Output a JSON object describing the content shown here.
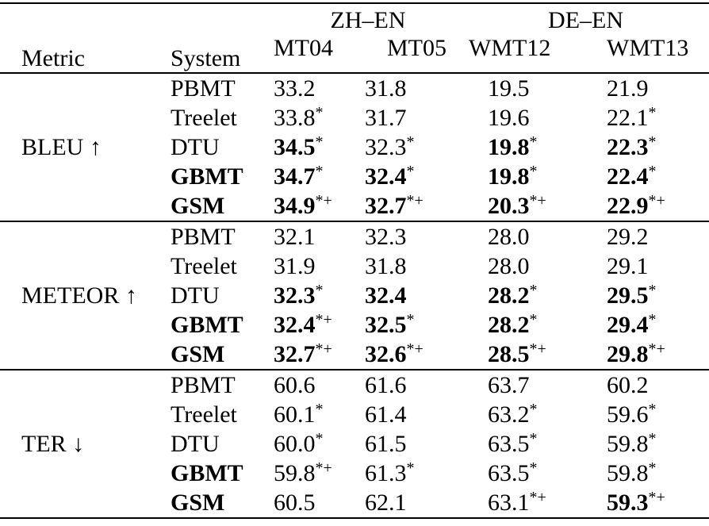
{
  "page": {
    "background": "#ffffff",
    "text_color": "#000000",
    "rule_color": "#000000"
  },
  "table": {
    "header": {
      "metric": "Metric",
      "system": "System",
      "groups": [
        {
          "label": "ZH–EN",
          "cols": [
            "MT04",
            "MT05"
          ]
        },
        {
          "label": "DE–EN",
          "cols": [
            "WMT12",
            "WMT13"
          ]
        }
      ]
    },
    "sections": [
      {
        "id": "bleu",
        "metric": "BLEU ↑",
        "rows": [
          {
            "system": "PBMT",
            "bold": false,
            "values": [
              {
                "v": "33.2",
                "sup": "",
                "bold": false
              },
              {
                "v": "31.8",
                "sup": "",
                "bold": false
              },
              {
                "v": "19.5",
                "sup": "",
                "bold": false
              },
              {
                "v": "21.9",
                "sup": "",
                "bold": false
              }
            ]
          },
          {
            "system": "Treelet",
            "bold": false,
            "values": [
              {
                "v": "33.8",
                "sup": "*",
                "bold": false
              },
              {
                "v": "31.7",
                "sup": "",
                "bold": false
              },
              {
                "v": "19.6",
                "sup": "",
                "bold": false
              },
              {
                "v": "22.1",
                "sup": "*",
                "bold": false
              }
            ]
          },
          {
            "system": "DTU",
            "bold": false,
            "values": [
              {
                "v": "34.5",
                "sup": "*",
                "bold": true
              },
              {
                "v": "32.3",
                "sup": "*",
                "bold": false
              },
              {
                "v": "19.8",
                "sup": "*",
                "bold": true
              },
              {
                "v": "22.3",
                "sup": "*",
                "bold": true
              }
            ]
          },
          {
            "system": "GBMT",
            "bold": true,
            "values": [
              {
                "v": "34.7",
                "sup": "*",
                "bold": true
              },
              {
                "v": "32.4",
                "sup": "*",
                "bold": true
              },
              {
                "v": "19.8",
                "sup": "*",
                "bold": true
              },
              {
                "v": "22.4",
                "sup": "*",
                "bold": true
              }
            ]
          },
          {
            "system": "GSM",
            "bold": true,
            "values": [
              {
                "v": "34.9",
                "sup": "*+",
                "bold": true
              },
              {
                "v": "32.7",
                "sup": "*+",
                "bold": true
              },
              {
                "v": "20.3",
                "sup": "*+",
                "bold": true
              },
              {
                "v": "22.9",
                "sup": "*+",
                "bold": true
              }
            ]
          }
        ]
      },
      {
        "id": "meteor",
        "metric": "METEOR ↑",
        "rows": [
          {
            "system": "PBMT",
            "bold": false,
            "values": [
              {
                "v": "32.1",
                "sup": "",
                "bold": false
              },
              {
                "v": "32.3",
                "sup": "",
                "bold": false
              },
              {
                "v": "28.0",
                "sup": "",
                "bold": false
              },
              {
                "v": "29.2",
                "sup": "",
                "bold": false
              }
            ]
          },
          {
            "system": "Treelet",
            "bold": false,
            "values": [
              {
                "v": "31.9",
                "sup": "",
                "bold": false
              },
              {
                "v": "31.8",
                "sup": "",
                "bold": false
              },
              {
                "v": "28.0",
                "sup": "",
                "bold": false
              },
              {
                "v": "29.1",
                "sup": "",
                "bold": false
              }
            ]
          },
          {
            "system": "DTU",
            "bold": false,
            "values": [
              {
                "v": "32.3",
                "sup": "*",
                "bold": true
              },
              {
                "v": "32.4",
                "sup": "",
                "bold": true
              },
              {
                "v": "28.2",
                "sup": "*",
                "bold": true
              },
              {
                "v": "29.5",
                "sup": "*",
                "bold": true
              }
            ]
          },
          {
            "system": "GBMT",
            "bold": true,
            "values": [
              {
                "v": "32.4",
                "sup": "*+",
                "bold": true
              },
              {
                "v": "32.5",
                "sup": "*",
                "bold": true
              },
              {
                "v": "28.2",
                "sup": "*",
                "bold": true
              },
              {
                "v": "29.4",
                "sup": "*",
                "bold": true
              }
            ]
          },
          {
            "system": "GSM",
            "bold": true,
            "values": [
              {
                "v": "32.7",
                "sup": "*+",
                "bold": true
              },
              {
                "v": "32.6",
                "sup": "*+",
                "bold": true
              },
              {
                "v": "28.5",
                "sup": "*+",
                "bold": true
              },
              {
                "v": "29.8",
                "sup": "*+",
                "bold": true
              }
            ]
          }
        ]
      },
      {
        "id": "ter",
        "metric": "TER ↓",
        "rows": [
          {
            "system": "PBMT",
            "bold": false,
            "values": [
              {
                "v": "60.6",
                "sup": "",
                "bold": false
              },
              {
                "v": "61.6",
                "sup": "",
                "bold": false
              },
              {
                "v": "63.7",
                "sup": "",
                "bold": false
              },
              {
                "v": "60.2",
                "sup": "",
                "bold": false
              }
            ]
          },
          {
            "system": "Treelet",
            "bold": false,
            "values": [
              {
                "v": "60.1",
                "sup": "*",
                "bold": false
              },
              {
                "v": "61.4",
                "sup": "",
                "bold": false
              },
              {
                "v": "63.2",
                "sup": "*",
                "bold": false
              },
              {
                "v": "59.6",
                "sup": "*",
                "bold": false
              }
            ]
          },
          {
            "system": "DTU",
            "bold": false,
            "values": [
              {
                "v": "60.0",
                "sup": "*",
                "bold": false
              },
              {
                "v": "61.5",
                "sup": "",
                "bold": false
              },
              {
                "v": "63.5",
                "sup": "*",
                "bold": false
              },
              {
                "v": "59.8",
                "sup": "*",
                "bold": false
              }
            ]
          },
          {
            "system": "GBMT",
            "bold": true,
            "values": [
              {
                "v": "59.8",
                "sup": "*+",
                "bold": false
              },
              {
                "v": "61.3",
                "sup": "*",
                "bold": false
              },
              {
                "v": "63.5",
                "sup": "*",
                "bold": false
              },
              {
                "v": "59.8",
                "sup": "*",
                "bold": false
              }
            ]
          },
          {
            "system": "GSM",
            "bold": true,
            "values": [
              {
                "v": "60.5",
                "sup": "",
                "bold": false
              },
              {
                "v": "62.1",
                "sup": "",
                "bold": false
              },
              {
                "v": "63.1",
                "sup": "*+",
                "bold": false
              },
              {
                "v": "59.3",
                "sup": "*+",
                "bold": true
              }
            ]
          }
        ]
      }
    ]
  }
}
